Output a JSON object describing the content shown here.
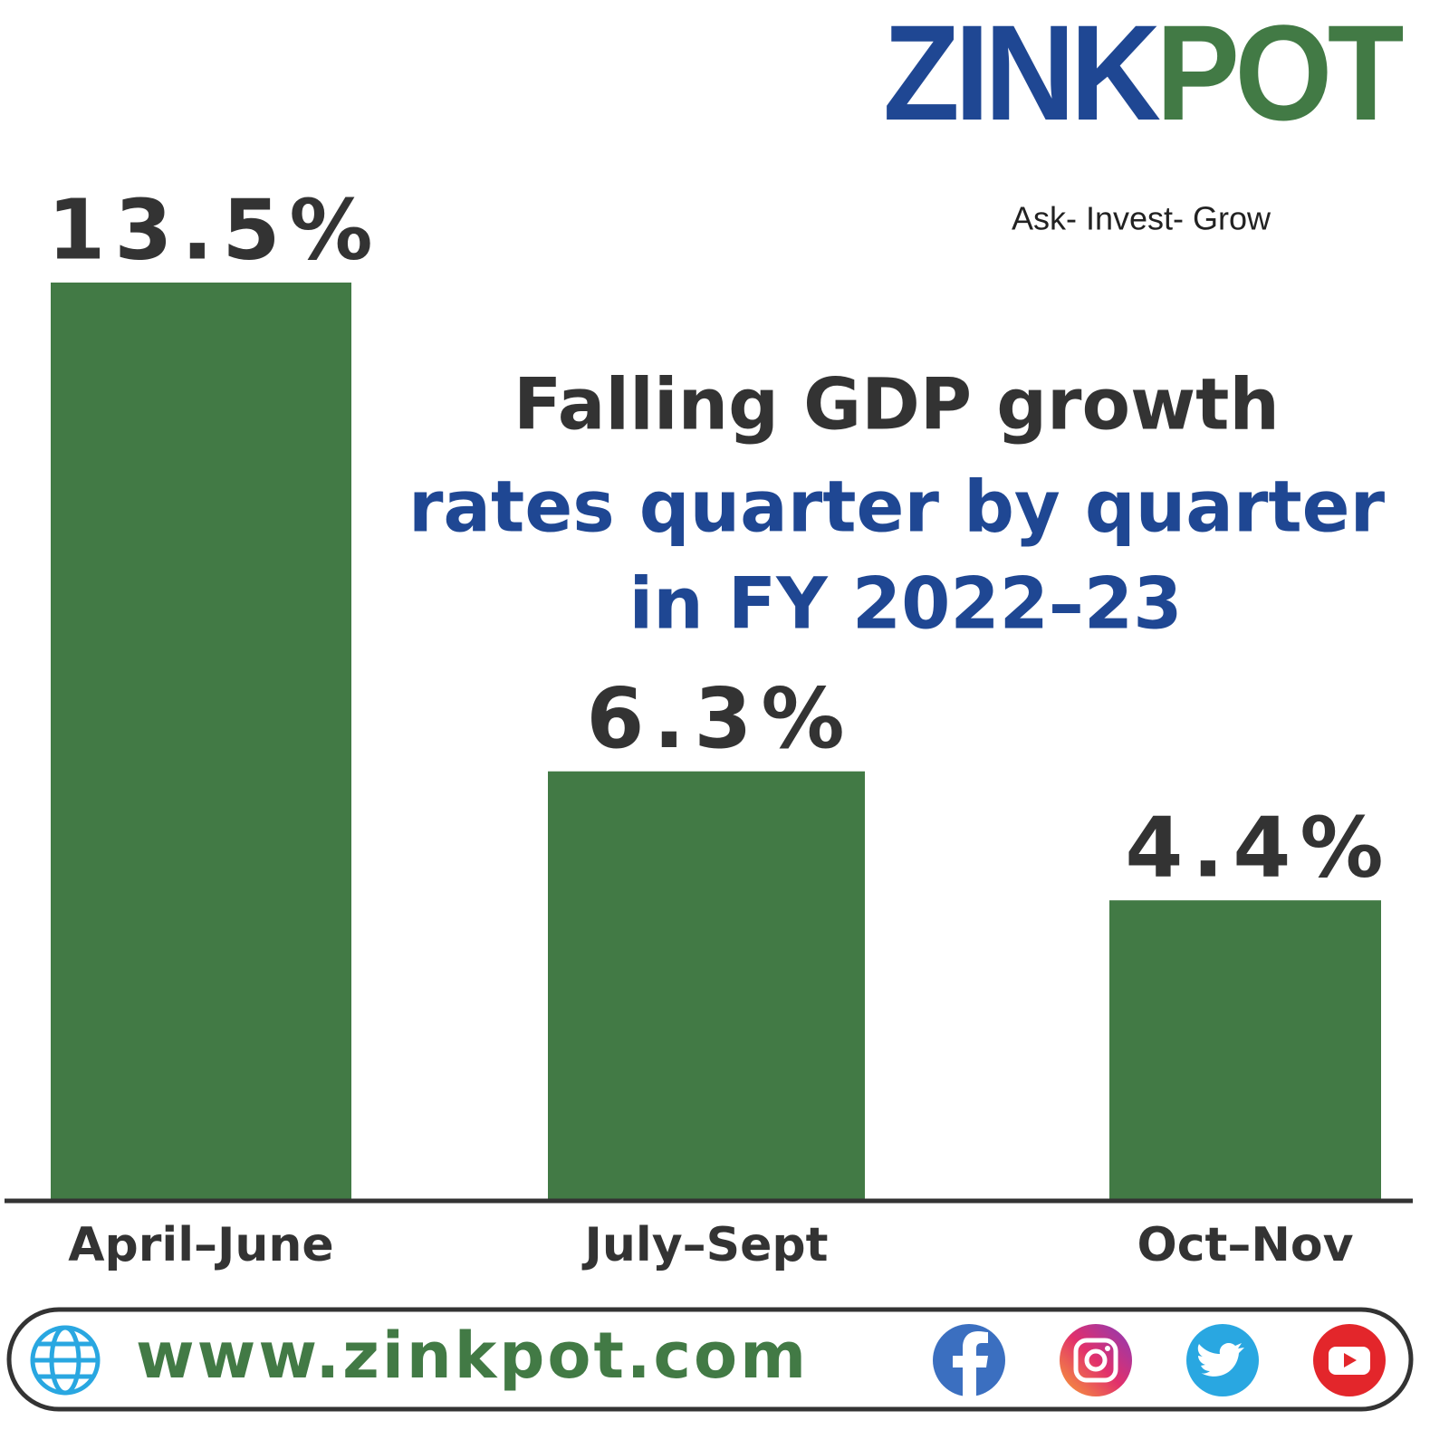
{
  "brand": {
    "name_part1": "ZINK",
    "name_part2": "POT",
    "tagline": "Ask- Invest- Grow"
  },
  "chart_data": {
    "type": "bar",
    "title_lines": [
      "Falling GDP growth",
      "rates quarter by quarter",
      "in FY 2022–23"
    ],
    "categories": [
      "April–June",
      "July–Sept",
      "Oct–Nov"
    ],
    "values": [
      13.5,
      6.3,
      4.4
    ],
    "value_labels": [
      "13.5%",
      "6.3%",
      "4.4%"
    ],
    "color": "#427a45"
  },
  "footer": {
    "website": "www.zinkpot.com"
  }
}
